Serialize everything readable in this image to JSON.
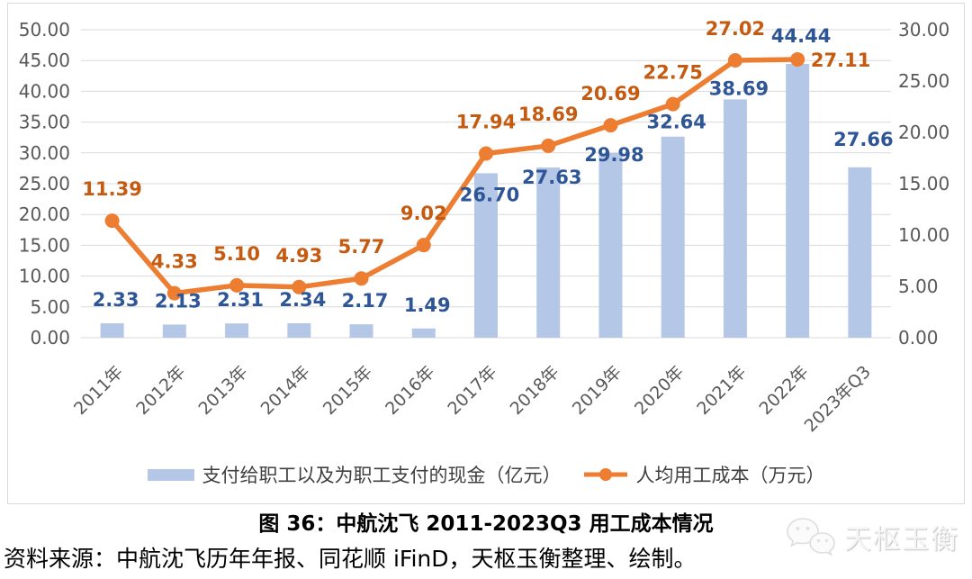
{
  "chart_data": {
    "type": "bar",
    "combo": "bar+line",
    "categories": [
      "2011年",
      "2012年",
      "2013年",
      "2014年",
      "2015年",
      "2016年",
      "2017年",
      "2018年",
      "2019年",
      "2020年",
      "2021年",
      "2022年",
      "2023年Q3"
    ],
    "series": [
      {
        "name": "支付给职工以及为职工支付的现金（亿元）",
        "type": "bar",
        "axis": "left",
        "color": "#b4c7e7",
        "label_color": "#2e5596",
        "values": [
          2.33,
          2.13,
          2.31,
          2.34,
          2.17,
          1.49,
          26.7,
          27.63,
          29.98,
          32.64,
          38.69,
          44.44,
          27.66
        ]
      },
      {
        "name": "人均用工成本（万元）",
        "type": "line",
        "axis": "right",
        "color": "#ed7d31",
        "label_color": "#c55a11",
        "values": [
          11.39,
          4.33,
          5.1,
          4.93,
          5.77,
          9.02,
          17.94,
          18.69,
          20.69,
          22.75,
          27.02,
          27.11
        ]
      }
    ],
    "left_axis": {
      "min": 0,
      "max": 50,
      "step": 5,
      "tick_format": "0.00"
    },
    "right_axis": {
      "min": 0,
      "max": 30,
      "step": 5,
      "tick_format": "0.00"
    },
    "grid": true,
    "legend_position": "bottom",
    "x_label_rotation": -45
  },
  "title": "图 36：中航沈飞 2011-2023Q3 用工成本情况",
  "source": "资料来源：中航沈飞历年年报、同花顺 iFinD，天枢玉衡整理、绘制。",
  "watermark": {
    "text": "天枢玉衡",
    "icon": "wechat-icon"
  },
  "colors": {
    "bar_fill": "#b4c7e7",
    "line": "#ed7d31",
    "bar_label": "#2e5596",
    "line_label": "#c55a11",
    "axis_text": "#595959",
    "gridline": "#d9d9d9",
    "frame_border": "#d9d9d9"
  }
}
